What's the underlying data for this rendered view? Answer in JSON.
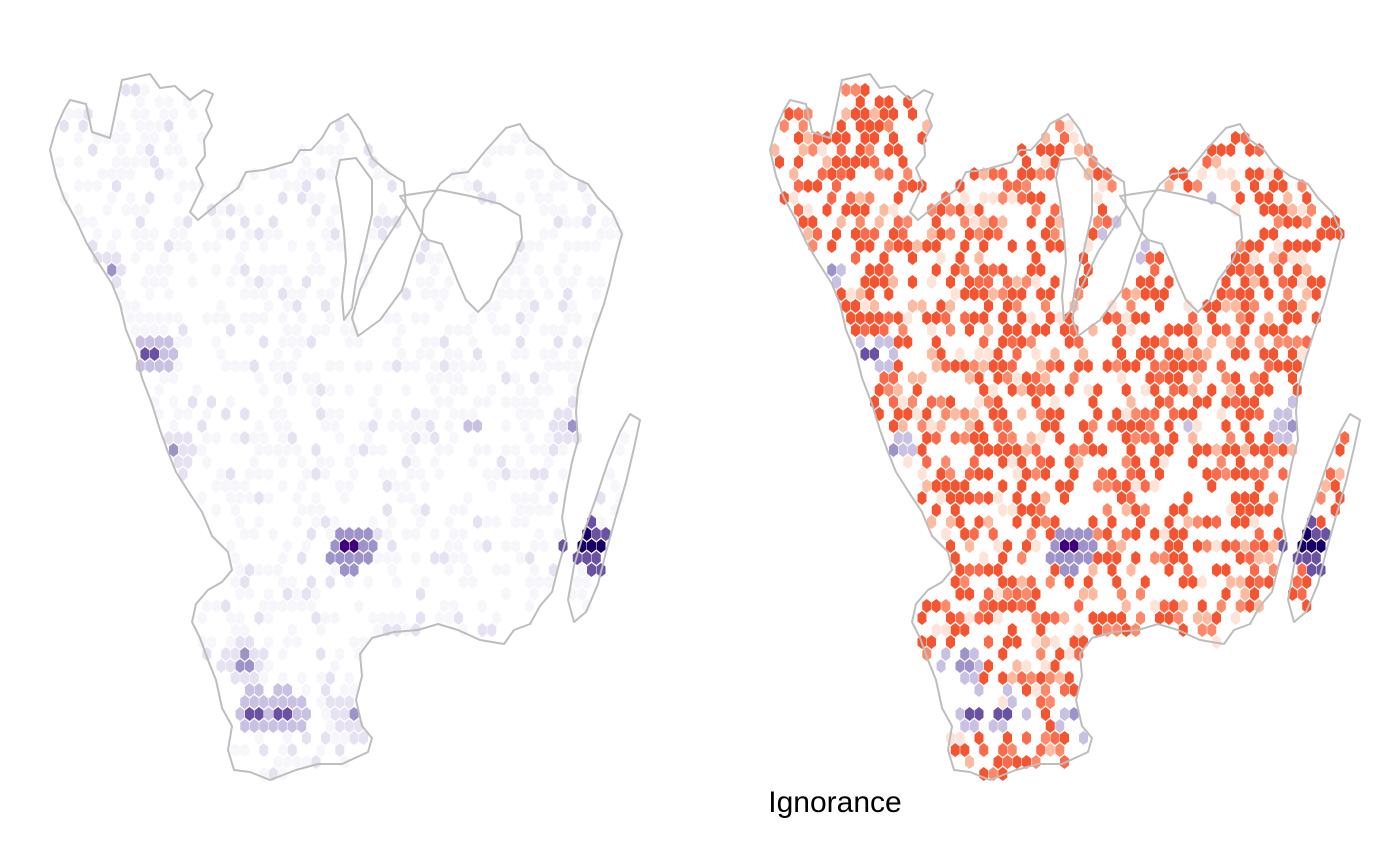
{
  "panels": [
    {
      "name": "left-map",
      "caption": "",
      "palette": "purple"
    },
    {
      "name": "right-map",
      "caption": "Ignorance",
      "palette": "ignorance"
    }
  ],
  "colors": {
    "outline": "#bdbdbd",
    "background": "#ffffff",
    "purple_scale": [
      "#f7f6fb",
      "#e6e2f1",
      "#c9c1e2",
      "#9e93c8",
      "#6a51a3",
      "#3f007d",
      "#1a0066"
    ],
    "ignorance_scale": [
      "#fde3d8",
      "#fcbba1",
      "#fc8a6a",
      "#fb6a4a",
      "#f4542f"
    ]
  }
}
